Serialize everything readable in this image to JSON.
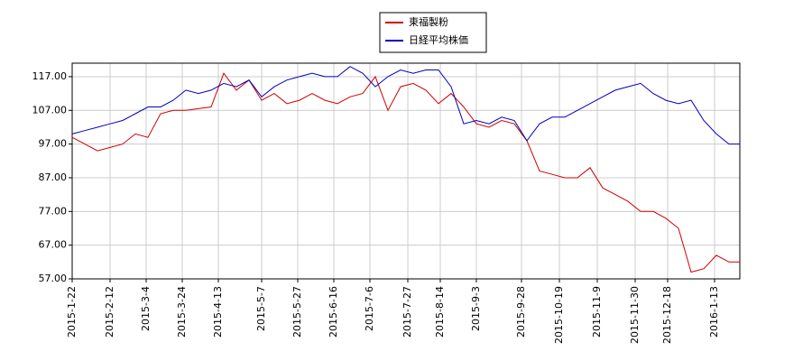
{
  "chart_data": {
    "type": "line",
    "legend": "upper center",
    "grid": true,
    "x": [
      "2015-1-22",
      "2015-1-29",
      "2015-2-5",
      "2015-2-12",
      "2015-2-19",
      "2015-2-26",
      "2015-3-5",
      "2015-3-12",
      "2015-3-19",
      "2015-3-26",
      "2015-4-2",
      "2015-4-9",
      "2015-4-16",
      "2015-4-23",
      "2015-4-30",
      "2015-5-7",
      "2015-5-14",
      "2015-5-21",
      "2015-5-28",
      "2015-6-4",
      "2015-6-11",
      "2015-6-18",
      "2015-6-25",
      "2015-7-2",
      "2015-7-9",
      "2015-7-16",
      "2015-7-23",
      "2015-7-30",
      "2015-8-6",
      "2015-8-13",
      "2015-8-20",
      "2015-8-27",
      "2015-9-3",
      "2015-9-10",
      "2015-9-17",
      "2015-9-24",
      "2015-10-1",
      "2015-10-8",
      "2015-10-15",
      "2015-10-22",
      "2015-10-29",
      "2015-11-5",
      "2015-11-12",
      "2015-11-19",
      "2015-11-26",
      "2015-12-3",
      "2015-12-10",
      "2015-12-17",
      "2015-12-24",
      "2015-12-31",
      "2016-1-7",
      "2016-1-14",
      "2016-1-21",
      "2016-1-27"
    ],
    "series": [
      {
        "name": "東福製粉",
        "color": "#d00000",
        "values": [
          99,
          97,
          95,
          96,
          97,
          100,
          99,
          106,
          107,
          107,
          107.5,
          108,
          118,
          113,
          116,
          110,
          112,
          109,
          110,
          112,
          110,
          109,
          111,
          112,
          117,
          107,
          114,
          115,
          113,
          109,
          112,
          108,
          103,
          102,
          104,
          103,
          98,
          89,
          88,
          87,
          87,
          90,
          84,
          82,
          80,
          77,
          77,
          75,
          72,
          59,
          60,
          64,
          62,
          62
        ]
      },
      {
        "name": "日経平均株価",
        "color": "#0000c0",
        "values": [
          100,
          101,
          102,
          103,
          104,
          106,
          108,
          108,
          110,
          113,
          112,
          113,
          115,
          114,
          116,
          111,
          114,
          116,
          117,
          118,
          117,
          117,
          120,
          118,
          114,
          117,
          119,
          118,
          119,
          119,
          114,
          103,
          104,
          103,
          105,
          104,
          98,
          103,
          105,
          105,
          107,
          109,
          111,
          113,
          114,
          115,
          112,
          110,
          109,
          110,
          104,
          100,
          97,
          97
        ]
      }
    ],
    "xlim": [
      "2015-1-22",
      "2016-1-27"
    ],
    "xticks": [
      "2015-1-22",
      "2015-2-12",
      "2015-3-4",
      "2015-3-24",
      "2015-4-13",
      "2015-5-7",
      "2015-5-27",
      "2015-6-16",
      "2015-7-6",
      "2015-7-27",
      "2015-8-14",
      "2015-9-3",
      "2015-9-28",
      "2015-10-19",
      "2015-11-9",
      "2015-11-30",
      "2015-12-18",
      "2016-1-13"
    ],
    "ylim": [
      57,
      121
    ],
    "yticks": [
      {
        "value": 57,
        "label": "57.00"
      },
      {
        "value": 67,
        "label": "67.00"
      },
      {
        "value": 77,
        "label": "77.00"
      },
      {
        "value": 87,
        "label": "87.00"
      },
      {
        "value": 97,
        "label": "97.00"
      },
      {
        "value": 107,
        "label": "107.00"
      },
      {
        "value": 117,
        "label": "117.00"
      }
    ]
  }
}
